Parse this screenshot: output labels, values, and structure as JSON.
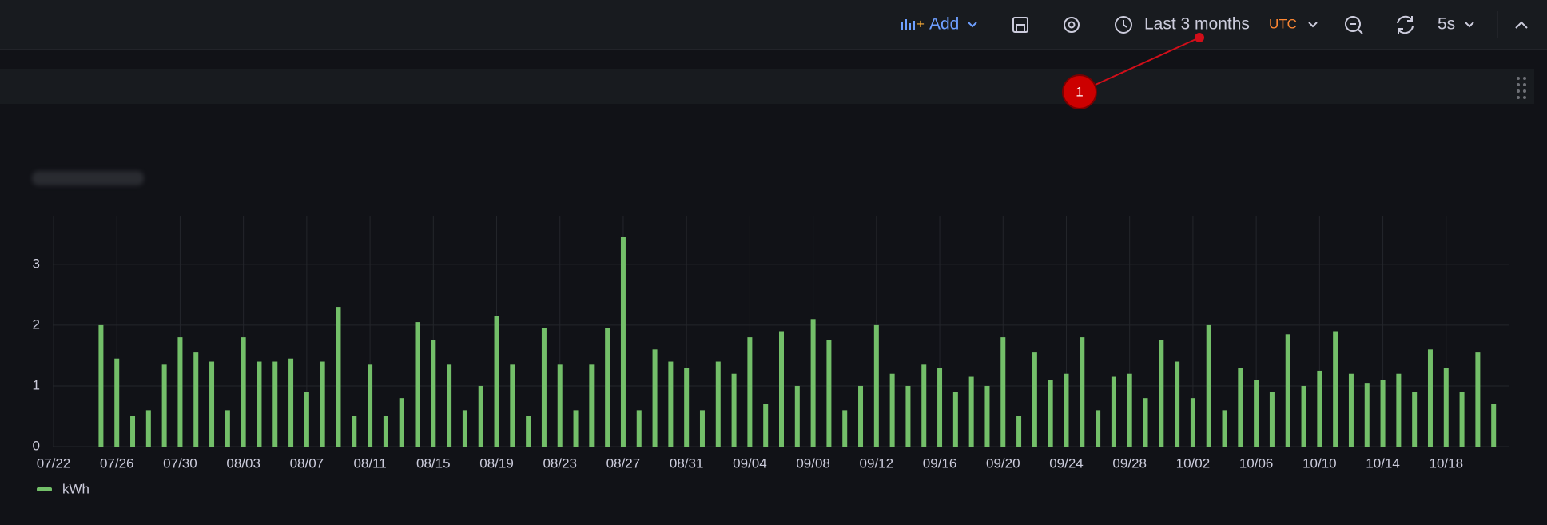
{
  "toolbar": {
    "add": "Add",
    "time_range": "Last 3 months",
    "timezone": "UTC",
    "refresh": "5s"
  },
  "annotation": "1",
  "chart_data": {
    "type": "bar",
    "x": [
      "07/25",
      "07/26",
      "07/27",
      "07/28",
      "07/29",
      "07/30",
      "07/31",
      "08/01",
      "08/02",
      "08/03",
      "08/04",
      "08/05",
      "08/06",
      "08/07",
      "08/08",
      "08/09",
      "08/10",
      "08/11",
      "08/12",
      "08/13",
      "08/14",
      "08/15",
      "08/16",
      "08/17",
      "08/18",
      "08/19",
      "08/20",
      "08/21",
      "08/22",
      "08/23",
      "08/24",
      "08/25",
      "08/26",
      "08/27",
      "08/28",
      "08/29",
      "08/30",
      "08/31",
      "09/01",
      "09/02",
      "09/03",
      "09/04",
      "09/05",
      "09/06",
      "09/07",
      "09/08",
      "09/09",
      "09/10",
      "09/11",
      "09/12",
      "09/13",
      "09/14",
      "09/15",
      "09/16",
      "09/17",
      "09/18",
      "09/19",
      "09/20",
      "09/21",
      "09/22",
      "09/23",
      "09/24",
      "09/25",
      "09/26",
      "09/27",
      "09/28",
      "09/29",
      "09/30",
      "10/01",
      "10/02",
      "10/03",
      "10/04",
      "10/05",
      "10/06",
      "10/07",
      "10/08",
      "10/09",
      "10/10",
      "10/11",
      "10/12",
      "10/13",
      "10/14",
      "10/15",
      "10/16",
      "10/17",
      "10/18",
      "10/19",
      "10/20",
      "10/21"
    ],
    "series": [
      {
        "name": "kWh",
        "color": "#73bf69",
        "values": [
          2.0,
          1.45,
          0.5,
          0.6,
          1.35,
          1.8,
          1.55,
          1.4,
          0.6,
          1.8,
          1.4,
          1.4,
          1.45,
          0.9,
          1.4,
          2.3,
          0.5,
          1.35,
          0.5,
          0.8,
          2.05,
          1.75,
          1.35,
          0.6,
          1.0,
          2.15,
          1.35,
          0.5,
          1.95,
          1.35,
          0.6,
          1.35,
          1.95,
          3.45,
          0.6,
          1.6,
          1.4,
          1.3,
          0.6,
          1.4,
          1.2,
          1.8,
          0.7,
          1.9,
          1.0,
          2.1,
          1.75,
          0.6,
          1.0,
          2.0,
          1.2,
          1.0,
          1.35,
          1.3,
          0.9,
          1.15,
          1.0,
          1.8,
          0.5,
          1.55,
          1.1,
          1.2,
          1.8,
          0.6,
          1.15,
          1.2,
          0.8,
          1.75,
          1.4,
          0.8,
          2.0,
          0.6,
          1.3,
          1.1,
          0.9,
          1.85,
          1.0,
          1.25,
          1.9,
          1.2,
          1.05,
          1.1,
          1.2,
          0.9,
          1.6,
          1.3,
          0.9,
          1.55,
          0.7
        ]
      }
    ],
    "xlim": [
      "07/22",
      "10/22"
    ],
    "xticks": [
      "07/22",
      "07/26",
      "07/30",
      "08/03",
      "08/07",
      "08/11",
      "08/15",
      "08/19",
      "08/23",
      "08/27",
      "08/31",
      "09/04",
      "09/08",
      "09/12",
      "09/16",
      "09/20",
      "09/24",
      "09/28",
      "10/02",
      "10/06",
      "10/10",
      "10/14",
      "10/18"
    ],
    "ylim": [
      0,
      3.8
    ],
    "yticks": [
      0,
      1,
      2,
      3
    ],
    "grid": true
  }
}
